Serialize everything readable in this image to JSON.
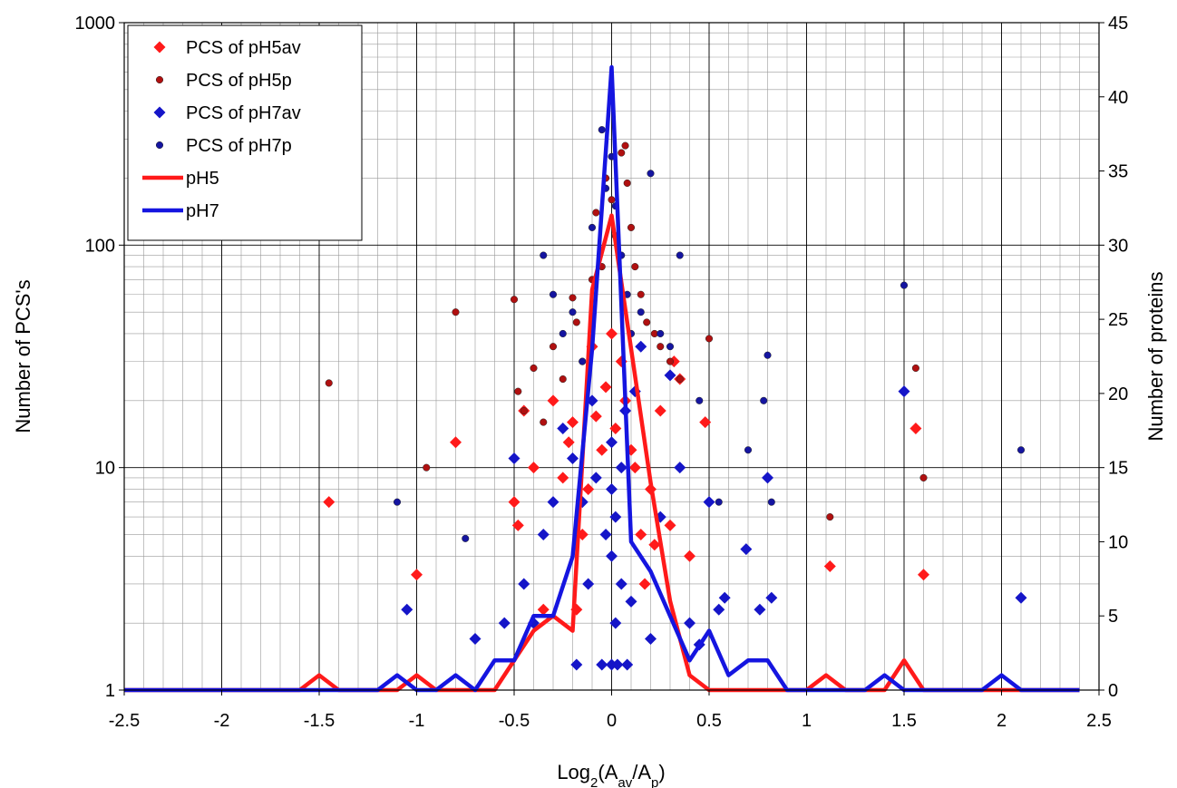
{
  "chart_data": {
    "type": "scatter",
    "title": "",
    "xlabel": {
      "base": "Log",
      "sub1": "2",
      "open": "(A",
      "sub2": "av",
      "mid": "/A",
      "sub3": "p",
      "close": ")"
    },
    "ylabel_left": "Number of PCS's",
    "ylabel_right": "Number of proteins",
    "xlim": [
      -2.5,
      2.5
    ],
    "ylim_left": [
      1,
      1000
    ],
    "ylim_right": [
      0,
      45
    ],
    "y_left_scale": "log",
    "grid": true,
    "legend_position": "top-left",
    "x_ticks": [
      "-2.5",
      "-2",
      "-1.5",
      "-1",
      "-0.5",
      "0",
      "0.5",
      "1",
      "1.5",
      "2",
      "2.5"
    ],
    "x_tick_values": [
      -2.5,
      -2,
      -1.5,
      -1,
      -0.5,
      0,
      0.5,
      1,
      1.5,
      2,
      2.5
    ],
    "y_left_ticks": [
      "1",
      "10",
      "100",
      "1000"
    ],
    "y_left_tick_values": [
      1,
      10,
      100,
      1000
    ],
    "y_right_ticks": [
      "0",
      "5",
      "10",
      "15",
      "20",
      "25",
      "30",
      "35",
      "40",
      "45"
    ],
    "y_right_tick_values": [
      0,
      5,
      10,
      15,
      20,
      25,
      30,
      35,
      40,
      45
    ],
    "series": [
      {
        "name": "PCS of pH5av",
        "kind": "diamond",
        "axis": "left",
        "color": "#ff1a1a",
        "points": [
          [
            -1.45,
            7
          ],
          [
            -1.0,
            3.3
          ],
          [
            -0.8,
            13
          ],
          [
            -0.5,
            7
          ],
          [
            -0.48,
            5.5
          ],
          [
            -0.45,
            18
          ],
          [
            -0.4,
            10
          ],
          [
            -0.35,
            2.3
          ],
          [
            -0.3,
            20
          ],
          [
            -0.25,
            9
          ],
          [
            -0.22,
            13
          ],
          [
            -0.2,
            16
          ],
          [
            -0.18,
            2.3
          ],
          [
            -0.15,
            5
          ],
          [
            -0.12,
            8
          ],
          [
            -0.1,
            35
          ],
          [
            -0.08,
            17
          ],
          [
            -0.05,
            12
          ],
          [
            -0.03,
            23
          ],
          [
            0.0,
            40
          ],
          [
            0.02,
            15
          ],
          [
            0.05,
            30
          ],
          [
            0.07,
            20
          ],
          [
            0.1,
            12
          ],
          [
            0.12,
            10
          ],
          [
            0.15,
            5
          ],
          [
            0.17,
            3
          ],
          [
            0.2,
            8
          ],
          [
            0.22,
            4.5
          ],
          [
            0.25,
            18
          ],
          [
            0.3,
            5.5
          ],
          [
            0.32,
            30
          ],
          [
            0.35,
            25
          ],
          [
            0.4,
            4
          ],
          [
            0.48,
            16
          ],
          [
            1.12,
            3.6
          ],
          [
            1.56,
            15
          ],
          [
            1.6,
            3.3
          ]
        ]
      },
      {
        "name": "PCS of pH5p",
        "kind": "dot",
        "axis": "left",
        "color": "#b01010",
        "points": [
          [
            -1.45,
            24
          ],
          [
            -0.95,
            10
          ],
          [
            -0.8,
            50
          ],
          [
            -0.5,
            57
          ],
          [
            -0.48,
            22
          ],
          [
            -0.45,
            18
          ],
          [
            -0.4,
            28
          ],
          [
            -0.35,
            16
          ],
          [
            -0.3,
            35
          ],
          [
            -0.25,
            25
          ],
          [
            -0.2,
            58
          ],
          [
            -0.18,
            45
          ],
          [
            -0.15,
            30
          ],
          [
            -0.1,
            70
          ],
          [
            -0.08,
            140
          ],
          [
            -0.05,
            80
          ],
          [
            -0.03,
            200
          ],
          [
            0.0,
            160
          ],
          [
            0.02,
            110
          ],
          [
            0.05,
            260
          ],
          [
            0.07,
            280
          ],
          [
            0.08,
            190
          ],
          [
            0.1,
            120
          ],
          [
            0.12,
            80
          ],
          [
            0.15,
            60
          ],
          [
            0.18,
            45
          ],
          [
            0.22,
            40
          ],
          [
            0.25,
            35
          ],
          [
            0.3,
            30
          ],
          [
            0.35,
            25
          ],
          [
            0.5,
            38
          ],
          [
            1.12,
            6
          ],
          [
            1.56,
            28
          ],
          [
            1.6,
            9
          ]
        ]
      },
      {
        "name": "PCS of pH7av",
        "kind": "diamond",
        "axis": "left",
        "color": "#1515c8",
        "points": [
          [
            -1.05,
            2.3
          ],
          [
            -0.7,
            1.7
          ],
          [
            -0.55,
            2
          ],
          [
            -0.5,
            11
          ],
          [
            -0.45,
            3
          ],
          [
            -0.4,
            2
          ],
          [
            -0.35,
            5
          ],
          [
            -0.3,
            7
          ],
          [
            -0.25,
            15
          ],
          [
            -0.2,
            11
          ],
          [
            -0.18,
            1.3
          ],
          [
            -0.15,
            7
          ],
          [
            -0.12,
            3
          ],
          [
            -0.1,
            20
          ],
          [
            -0.08,
            9
          ],
          [
            -0.05,
            1.3
          ],
          [
            -0.03,
            5
          ],
          [
            0.0,
            1.3
          ],
          [
            0.0,
            4
          ],
          [
            0.0,
            8
          ],
          [
            0.0,
            13
          ],
          [
            0.02,
            2
          ],
          [
            0.02,
            6
          ],
          [
            0.03,
            1.3
          ],
          [
            0.05,
            3
          ],
          [
            0.05,
            10
          ],
          [
            0.07,
            18
          ],
          [
            0.08,
            1.3
          ],
          [
            0.1,
            2.5
          ],
          [
            0.12,
            22
          ],
          [
            0.15,
            35
          ],
          [
            0.2,
            1.7
          ],
          [
            0.25,
            6
          ],
          [
            0.3,
            26
          ],
          [
            0.35,
            10
          ],
          [
            0.4,
            2
          ],
          [
            0.45,
            1.6
          ],
          [
            0.5,
            7
          ],
          [
            0.55,
            2.3
          ],
          [
            0.58,
            2.6
          ],
          [
            0.69,
            4.3
          ],
          [
            0.76,
            2.3
          ],
          [
            0.8,
            9
          ],
          [
            0.82,
            2.6
          ],
          [
            1.5,
            22
          ],
          [
            2.1,
            2.6
          ]
        ]
      },
      {
        "name": "PCS of pH7p",
        "kind": "dot",
        "axis": "left",
        "color": "#1515a0",
        "points": [
          [
            -1.1,
            7
          ],
          [
            -0.75,
            4.8
          ],
          [
            -0.35,
            90
          ],
          [
            -0.3,
            60
          ],
          [
            -0.25,
            40
          ],
          [
            -0.2,
            50
          ],
          [
            -0.15,
            30
          ],
          [
            -0.1,
            120
          ],
          [
            -0.05,
            330
          ],
          [
            -0.03,
            180
          ],
          [
            0.0,
            250
          ],
          [
            0.02,
            150
          ],
          [
            0.05,
            90
          ],
          [
            0.08,
            60
          ],
          [
            0.1,
            40
          ],
          [
            0.15,
            50
          ],
          [
            0.2,
            210
          ],
          [
            0.25,
            40
          ],
          [
            0.3,
            35
          ],
          [
            0.35,
            90
          ],
          [
            0.45,
            20
          ],
          [
            0.55,
            7
          ],
          [
            0.7,
            12
          ],
          [
            0.78,
            20
          ],
          [
            0.8,
            32
          ],
          [
            0.82,
            7
          ],
          [
            1.5,
            66
          ],
          [
            2.1,
            12
          ]
        ]
      },
      {
        "name": "pH5",
        "kind": "line",
        "axis": "right",
        "color": "#ff1a1a",
        "x": [
          -2.5,
          -1.6,
          -1.5,
          -1.4,
          -1.1,
          -1.0,
          -0.9,
          -0.6,
          -0.5,
          -0.4,
          -0.3,
          -0.2,
          -0.1,
          0.0,
          0.1,
          0.2,
          0.3,
          0.4,
          0.5,
          1.0,
          1.1,
          1.2,
          1.4,
          1.5,
          1.6,
          2.4
        ],
        "values": [
          0,
          0,
          1,
          0,
          0,
          1,
          0,
          0,
          2,
          4,
          5,
          4,
          27,
          32,
          23,
          14,
          6,
          1,
          0,
          0,
          1,
          0,
          0,
          2,
          0,
          0
        ]
      },
      {
        "name": "pH7",
        "kind": "line",
        "axis": "right",
        "color": "#1515e0",
        "x": [
          -2.5,
          -1.2,
          -1.1,
          -1.0,
          -0.9,
          -0.8,
          -0.7,
          -0.6,
          -0.5,
          -0.4,
          -0.3,
          -0.2,
          -0.1,
          0.0,
          0.1,
          0.2,
          0.3,
          0.4,
          0.5,
          0.6,
          0.7,
          0.8,
          0.9,
          1.3,
          1.4,
          1.5,
          1.9,
          2.0,
          2.1,
          2.4
        ],
        "values": [
          0,
          0,
          1,
          0,
          0,
          1,
          0,
          2,
          2,
          5,
          5,
          9,
          23,
          42,
          10,
          8,
          5,
          2,
          4,
          1,
          2,
          2,
          0,
          0,
          1,
          0,
          0,
          1,
          0,
          0
        ]
      }
    ]
  }
}
